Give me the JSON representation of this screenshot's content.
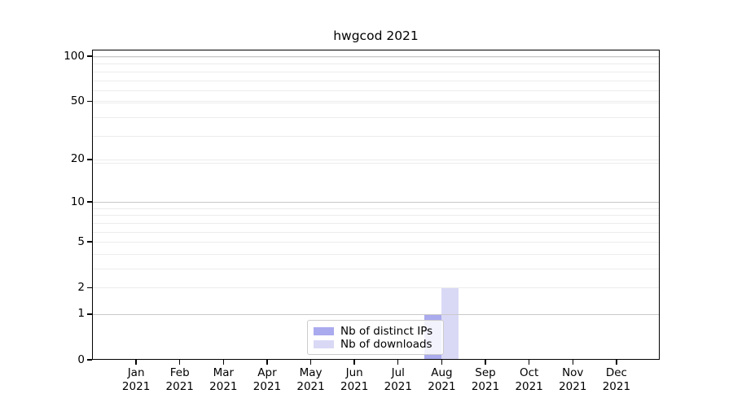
{
  "title": "hwgcod 2021",
  "chart_data": {
    "type": "bar",
    "categories": [
      "Jan 2021",
      "Feb 2021",
      "Mar 2021",
      "Apr 2021",
      "May 2021",
      "Jun 2021",
      "Jul 2021",
      "Aug 2021",
      "Sep 2021",
      "Oct 2021",
      "Nov 2021",
      "Dec 2021"
    ],
    "series": [
      {
        "name": "Nb of distinct IPs",
        "color": "#aaaaee",
        "values": [
          0,
          0,
          0,
          0,
          0,
          0,
          0,
          1,
          0,
          0,
          0,
          0
        ]
      },
      {
        "name": "Nb of downloads",
        "color": "#d9d9f6",
        "values": [
          0,
          0,
          0,
          0,
          0,
          0,
          0,
          2,
          0,
          0,
          0,
          0
        ]
      }
    ],
    "title": "hwgcod 2021",
    "xlabel": "",
    "ylabel": "",
    "yscale": "log1p",
    "ylim": [
      0,
      110
    ],
    "ytick_labels": [
      0,
      1,
      2,
      5,
      10,
      20,
      50,
      100
    ],
    "grid": "horizontal",
    "grid_major_values": [
      1,
      10,
      100
    ],
    "grid_minor_values": [
      1,
      2,
      3,
      4,
      5,
      6,
      7,
      8,
      9,
      19,
      20,
      29,
      39,
      49,
      50,
      59,
      69,
      79,
      89,
      99
    ],
    "legend_position": "lower center"
  }
}
